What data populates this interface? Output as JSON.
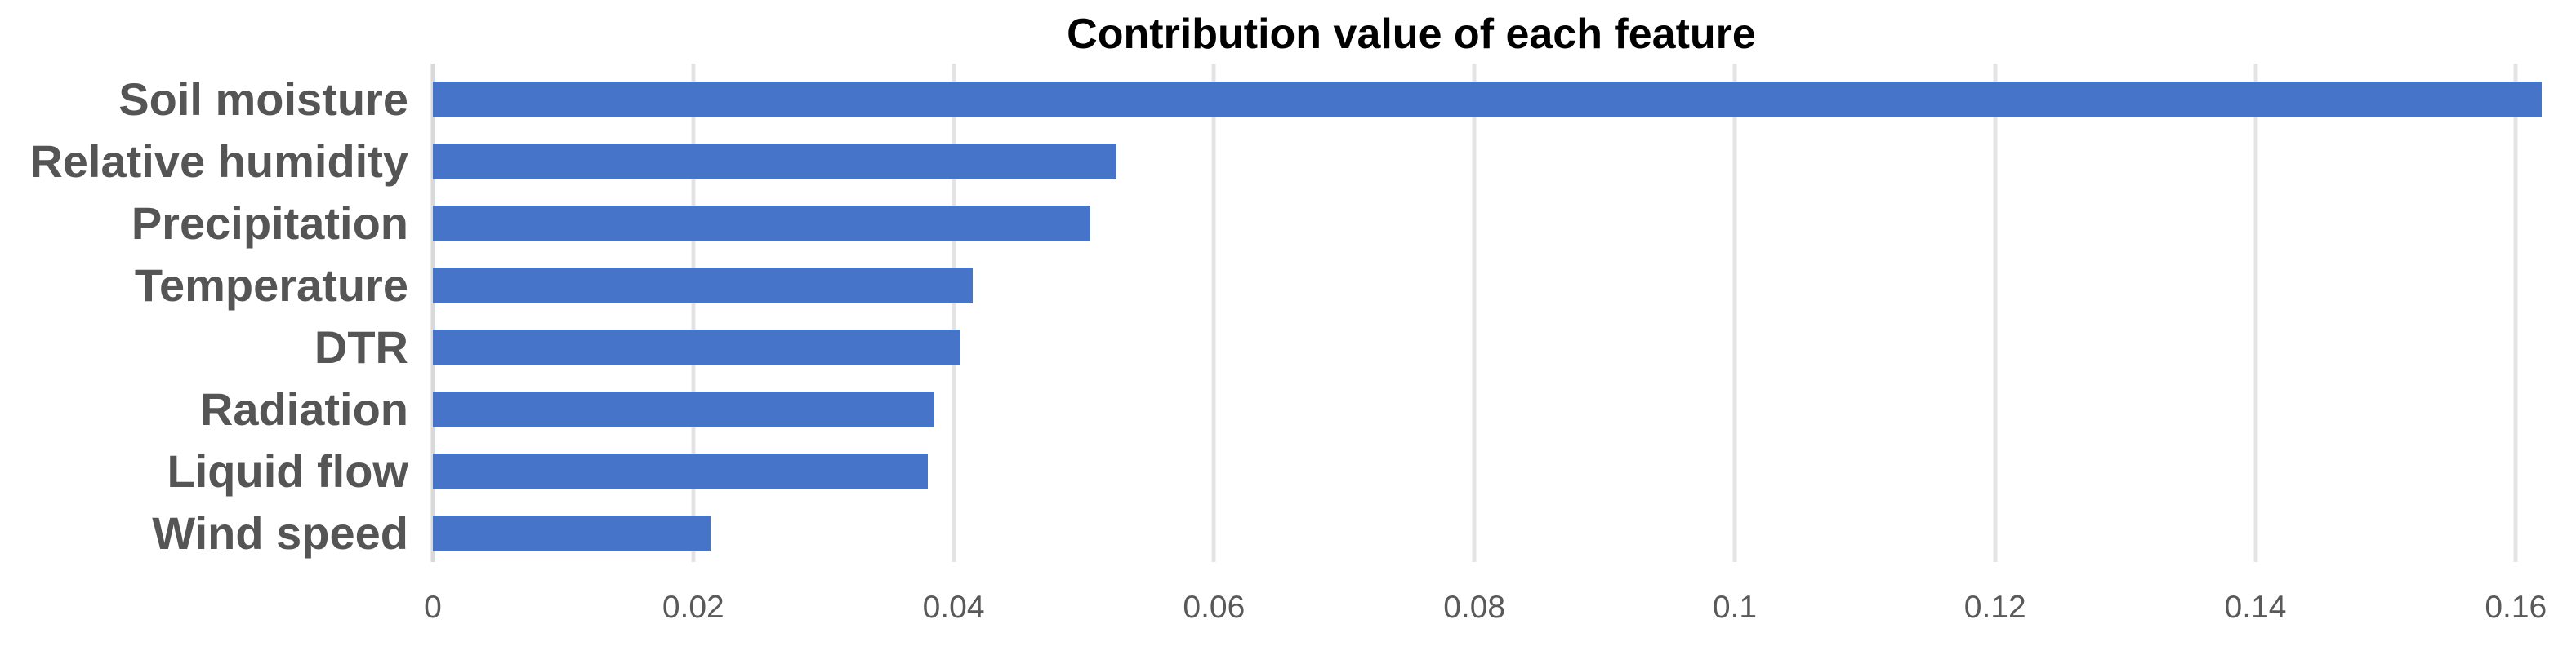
{
  "chart_data": {
    "type": "bar",
    "orientation": "horizontal",
    "title": "Contribution value of each feature",
    "categories": [
      "Soil moisture",
      "Relative humidity",
      "Precipitation",
      "Temperature",
      "DTR",
      "Radiation",
      "Liquid flow",
      "Wind speed"
    ],
    "values": [
      0.162,
      0.0525,
      0.0505,
      0.0415,
      0.0405,
      0.0385,
      0.038,
      0.0213
    ],
    "xlabel": "",
    "ylabel": "",
    "xlim": [
      0,
      0.165
    ],
    "xticks": [
      0,
      0.02,
      0.04,
      0.06,
      0.08,
      0.1,
      0.12,
      0.14,
      0.16
    ],
    "xtick_labels": [
      "0",
      "0.02",
      "0.04",
      "0.06",
      "0.08",
      "0.1",
      "0.12",
      "0.14",
      "0.16"
    ],
    "grid": "vertical-only",
    "legend": "none",
    "bar_color": "#4674C9",
    "gridline_color": "#E4E4E4",
    "axis_line_color": "#D9D9D9",
    "title_color": "#000000",
    "category_label_color": "#555555",
    "tick_label_color": "#595959",
    "background_color": "#FFFFFF"
  }
}
